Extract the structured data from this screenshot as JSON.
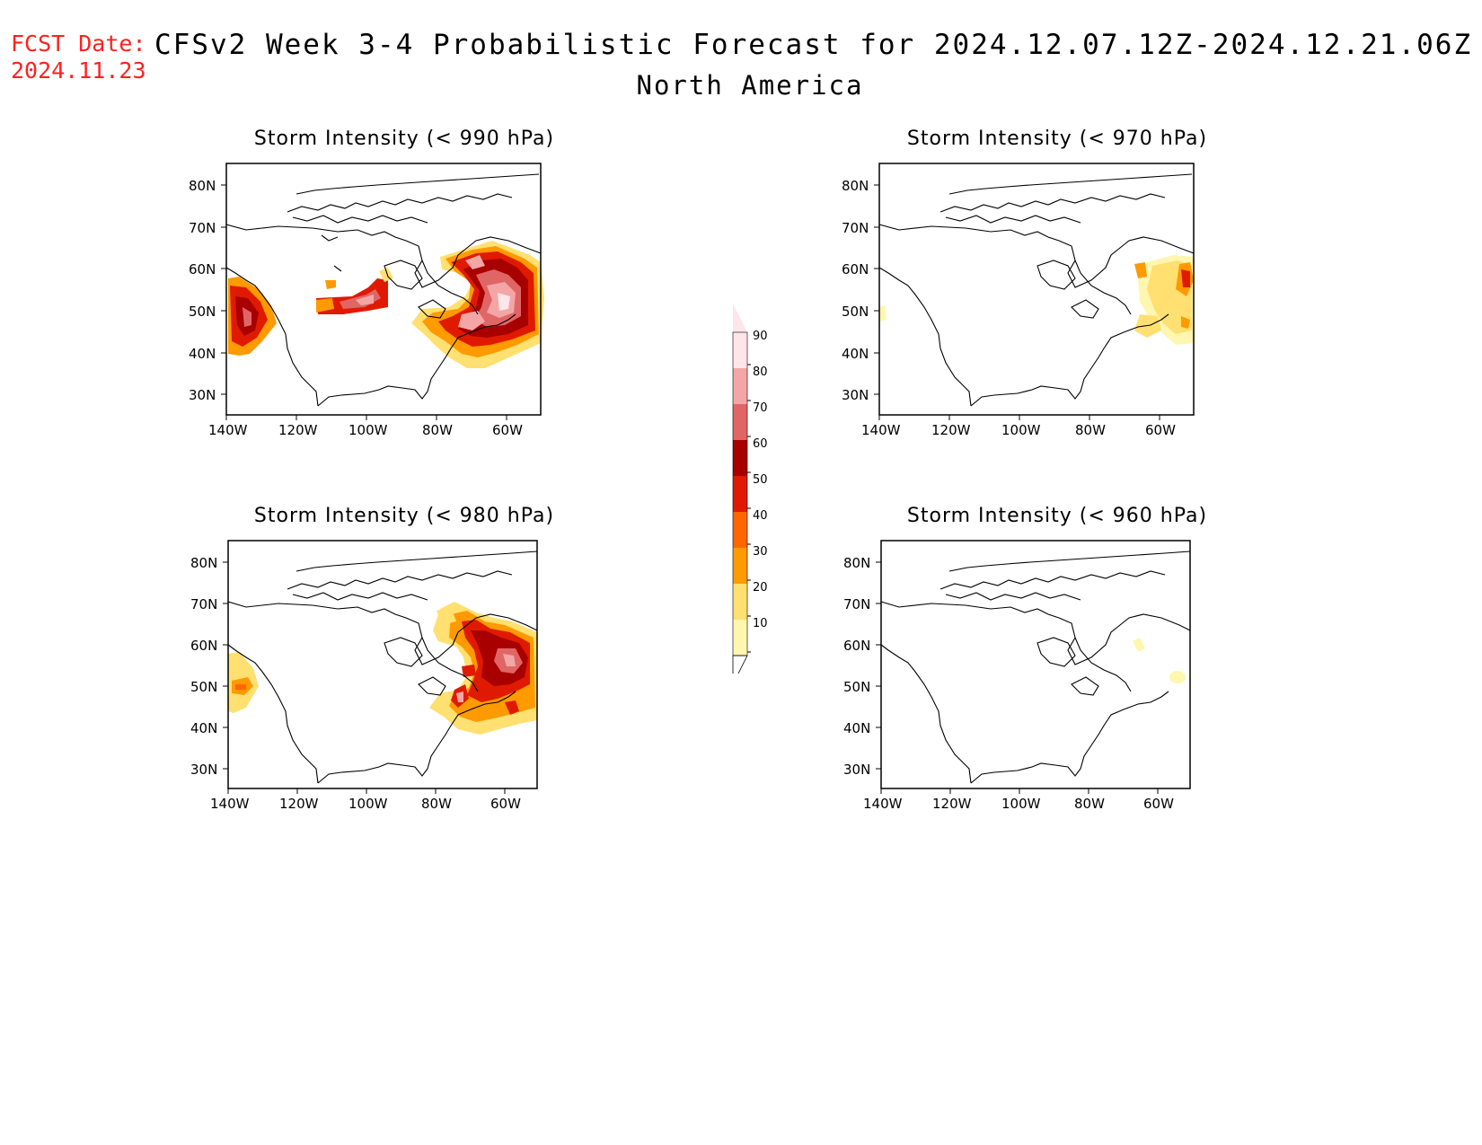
{
  "header": {
    "fcst_label": "FCST Date:",
    "fcst_date": "2024.11.23",
    "title": "CFSv2 Week 3-4 Probabilistic Forecast for 2024.12.07.12Z-2024.12.21.06Z",
    "region": "North America"
  },
  "map_axes": {
    "lat_labels": [
      "80N",
      "70N",
      "60N",
      "50N",
      "40N",
      "30N"
    ],
    "lon_labels": [
      "140W",
      "120W",
      "100W",
      "80W",
      "60W"
    ]
  },
  "panels": [
    {
      "title": "Storm Intensity (< 990 hPa)",
      "threshold_hpa": 990,
      "coverage": "high"
    },
    {
      "title": "Storm Intensity (< 970 hPa)",
      "threshold_hpa": 970,
      "coverage": "moderate"
    },
    {
      "title": "Storm Intensity (< 980 hPa)",
      "threshold_hpa": 980,
      "coverage": "elevated"
    },
    {
      "title": "Storm Intensity (< 960 hPa)",
      "threshold_hpa": 960,
      "coverage": "low"
    }
  ],
  "colorbar": {
    "levels": [
      "90",
      "80",
      "70",
      "60",
      "50",
      "40",
      "30",
      "20",
      "10"
    ],
    "colors": [
      "#fde6ea",
      "#f4a6a6",
      "#e06666",
      "#a80000",
      "#e01a00",
      "#ff6600",
      "#ff9a00",
      "#ffe070",
      "#fff6b0"
    ]
  }
}
